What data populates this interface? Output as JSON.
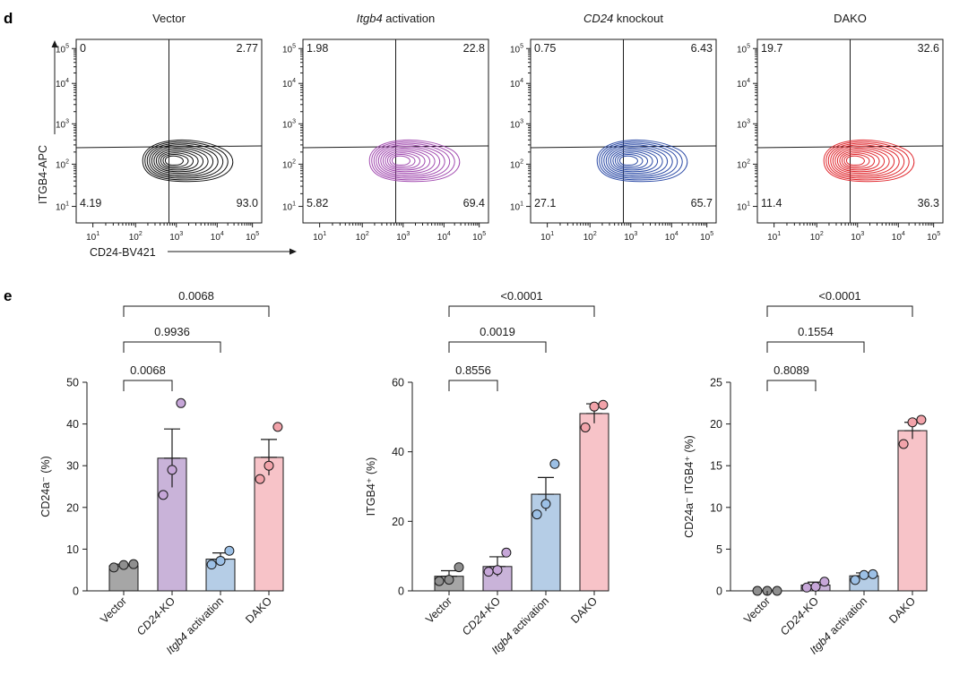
{
  "panel_d": {
    "label": "d",
    "y_axis_label": "ITGB4-APC",
    "x_axis_label": "CD24-BV421",
    "tick_exponents": [
      "1",
      "2",
      "3",
      "4",
      "5"
    ],
    "plots": [
      {
        "title": "Vector",
        "title_italic": "",
        "title_rest": "",
        "color": "#111111",
        "quadrants": {
          "ul": "0",
          "ur": "2.77",
          "ll": "4.19",
          "lr": "93.0"
        }
      },
      {
        "title": "",
        "title_italic": "Itgb4",
        "title_rest": " activation",
        "color": "#a24bb0",
        "quadrants": {
          "ul": "1.98",
          "ur": "22.8",
          "ll": "5.82",
          "lr": "69.4"
        }
      },
      {
        "title": "",
        "title_italic": "CD24",
        "title_rest": " knockout",
        "color": "#2b4aa6",
        "quadrants": {
          "ul": "0.75",
          "ur": "6.43",
          "ll": "27.1",
          "lr": "65.7"
        }
      },
      {
        "title": "DAKO",
        "title_italic": "",
        "title_rest": "",
        "color": "#e0282e",
        "quadrants": {
          "ul": "19.7",
          "ur": "32.6",
          "ll": "11.4",
          "lr": "36.3"
        }
      }
    ]
  },
  "panel_e": {
    "label": "e",
    "categories": [
      {
        "italic": "",
        "rest": "Vector"
      },
      {
        "italic": "CD24",
        "rest": "-KO"
      },
      {
        "italic": "Itgb4",
        "rest": " activation"
      },
      {
        "italic": "",
        "rest": "DAKO"
      }
    ],
    "bar_colors": [
      "#a6a6a6",
      "#c9b3d9",
      "#b5cde6",
      "#f7c3c8"
    ],
    "point_colors": [
      "#8f8f8f",
      "#c6a6d8",
      "#9cc0e6",
      "#f2a3aa"
    ]
  },
  "chart_data": [
    {
      "type": "bar",
      "ylabel": "CD24a⁻ (%)",
      "ylim": [
        0,
        50
      ],
      "yticks": [
        0,
        10,
        20,
        30,
        40,
        50
      ],
      "categories": [
        "Vector",
        "CD24-KO",
        "Itgb4 activation",
        "DAKO"
      ],
      "values": [
        6.0,
        31.8,
        7.6,
        32.0
      ],
      "errors": [
        0.4,
        7.0,
        1.5,
        4.3
      ],
      "points": [
        [
          5.6,
          6.2,
          6.4
        ],
        [
          23.0,
          29.0,
          45.0
        ],
        [
          6.3,
          7.2,
          9.6
        ],
        [
          26.8,
          30.0,
          39.3
        ]
      ],
      "comparisons": [
        {
          "from": 0,
          "to": 1,
          "label": "0.0068"
        },
        {
          "from": 0,
          "to": 2,
          "label": "0.9936"
        },
        {
          "from": 0,
          "to": 3,
          "label": "0.0068"
        }
      ]
    },
    {
      "type": "bar",
      "ylabel": "ITGB4⁺ (%)",
      "ylim": [
        0,
        60
      ],
      "yticks": [
        0,
        20,
        40,
        60
      ],
      "categories": [
        "Vector",
        "CD24-KO",
        "Itgb4 activation",
        "DAKO"
      ],
      "values": [
        4.2,
        7.0,
        27.8,
        51.0
      ],
      "errors": [
        1.6,
        2.8,
        4.8,
        2.8
      ],
      "points": [
        [
          2.8,
          3.2,
          6.8
        ],
        [
          5.5,
          6.0,
          11.0
        ],
        [
          22.0,
          25.0,
          36.5
        ],
        [
          47.0,
          53.0,
          53.5
        ]
      ],
      "comparisons": [
        {
          "from": 0,
          "to": 1,
          "label": "0.8556"
        },
        {
          "from": 0,
          "to": 2,
          "label": "0.0019"
        },
        {
          "from": 0,
          "to": 3,
          "label": "<0.0001"
        }
      ]
    },
    {
      "type": "bar",
      "ylabel": "CD24a⁻ ITGB4⁺ (%)",
      "ylim": [
        0,
        25
      ],
      "yticks": [
        0,
        5,
        10,
        15,
        20,
        25
      ],
      "categories": [
        "Vector",
        "CD24-KO",
        "Itgb4 activation",
        "DAKO"
      ],
      "values": [
        0.0,
        0.7,
        1.8,
        19.2
      ],
      "errors": [
        0.05,
        0.35,
        0.35,
        1.0
      ],
      "points": [
        [
          0.0,
          0.0,
          0.0
        ],
        [
          0.4,
          0.5,
          1.1
        ],
        [
          1.3,
          1.9,
          2.0
        ],
        [
          17.6,
          20.2,
          20.5
        ]
      ],
      "comparisons": [
        {
          "from": 0,
          "to": 1,
          "label": "0.8089"
        },
        {
          "from": 0,
          "to": 2,
          "label": "0.1554"
        },
        {
          "from": 0,
          "to": 3,
          "label": "<0.0001"
        }
      ]
    }
  ]
}
